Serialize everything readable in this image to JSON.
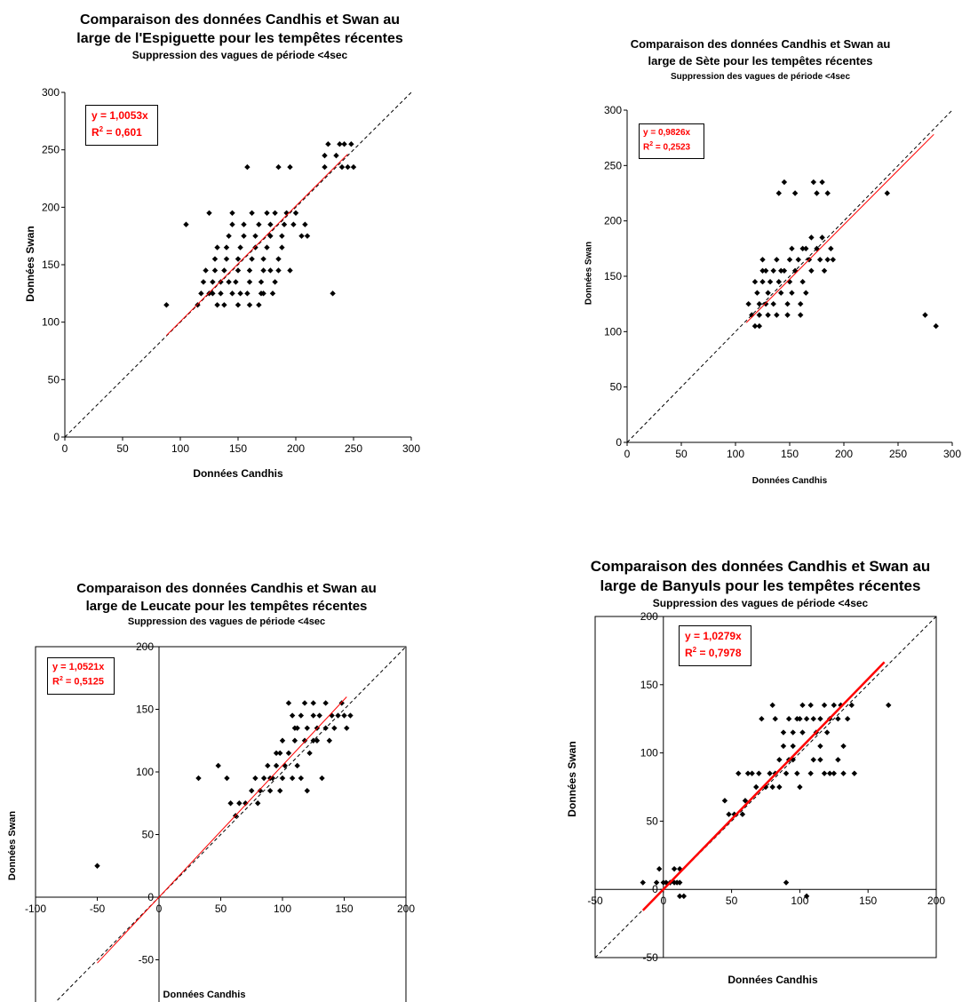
{
  "chart_data": [
    {
      "type": "scatter",
      "title_lines": [
        "Comparaison des données Candhis et Swan au",
        "large de l'Espiguette pour les tempêtes récentes"
      ],
      "subtitle": "Suppression des vagues de période <4sec",
      "xlabel": "Données Candhis",
      "ylabel": "Données Swan",
      "xlim": [
        0,
        300
      ],
      "ylim": [
        0,
        300
      ],
      "xticks": [
        0,
        50,
        100,
        150,
        200,
        250,
        300
      ],
      "yticks": [
        0,
        50,
        100,
        150,
        200,
        250,
        300
      ],
      "equation": "y = 1,0053x",
      "r2_label": "R",
      "r2_value": " = 0,601",
      "trend_slope": 1.0053,
      "trend_range": [
        88,
        245
      ],
      "points": [
        [
          88,
          115
        ],
        [
          105,
          185
        ],
        [
          115,
          115
        ],
        [
          118,
          125
        ],
        [
          120,
          135
        ],
        [
          122,
          145
        ],
        [
          125,
          195
        ],
        [
          125,
          125
        ],
        [
          128,
          135
        ],
        [
          130,
          145
        ],
        [
          130,
          155
        ],
        [
          132,
          165
        ],
        [
          132,
          115
        ],
        [
          135,
          125
        ],
        [
          135,
          135
        ],
        [
          138,
          145
        ],
        [
          140,
          155
        ],
        [
          140,
          165
        ],
        [
          142,
          175
        ],
        [
          145,
          195
        ],
        [
          145,
          185
        ],
        [
          145,
          125
        ],
        [
          148,
          135
        ],
        [
          150,
          145
        ],
        [
          150,
          155
        ],
        [
          150,
          115
        ],
        [
          152,
          165
        ],
        [
          155,
          175
        ],
        [
          155,
          185
        ],
        [
          158,
          125
        ],
        [
          158,
          235
        ],
        [
          160,
          135
        ],
        [
          160,
          145
        ],
        [
          162,
          155
        ],
        [
          162,
          195
        ],
        [
          165,
          165
        ],
        [
          165,
          175
        ],
        [
          168,
          185
        ],
        [
          168,
          115
        ],
        [
          170,
          125
        ],
        [
          170,
          135
        ],
        [
          172,
          145
        ],
        [
          172,
          155
        ],
        [
          175,
          165
        ],
        [
          175,
          195
        ],
        [
          178,
          175
        ],
        [
          178,
          185
        ],
        [
          180,
          125
        ],
        [
          182,
          135
        ],
        [
          182,
          195
        ],
        [
          185,
          145
        ],
        [
          185,
          155
        ],
        [
          185,
          235
        ],
        [
          188,
          165
        ],
        [
          188,
          175
        ],
        [
          190,
          185
        ],
        [
          192,
          195
        ],
        [
          195,
          235
        ],
        [
          195,
          145
        ],
        [
          198,
          185
        ],
        [
          200,
          195
        ],
        [
          205,
          175
        ],
        [
          208,
          185
        ],
        [
          210,
          175
        ],
        [
          225,
          235
        ],
        [
          225,
          245
        ],
        [
          228,
          255
        ],
        [
          232,
          125
        ],
        [
          235,
          245
        ],
        [
          238,
          255
        ],
        [
          240,
          235
        ],
        [
          242,
          255
        ],
        [
          245,
          235
        ],
        [
          248,
          255
        ],
        [
          250,
          235
        ],
        [
          128,
          125
        ],
        [
          138,
          115
        ],
        [
          142,
          135
        ],
        [
          152,
          125
        ],
        [
          160,
          115
        ],
        [
          172,
          125
        ],
        [
          178,
          145
        ]
      ]
    },
    {
      "type": "scatter",
      "title_lines": [
        "Comparaison des données Candhis et Swan au",
        "large de Sète pour les tempêtes récentes"
      ],
      "subtitle": "Suppression des vagues de période <4sec",
      "xlabel": "Données Candhis",
      "ylabel": "Données Swan",
      "xlim": [
        0,
        300
      ],
      "ylim": [
        0,
        300
      ],
      "xticks": [
        0,
        50,
        100,
        150,
        200,
        250,
        300
      ],
      "yticks": [
        0,
        50,
        100,
        150,
        200,
        250,
        300
      ],
      "equation": "y = 0,9826x",
      "r2_label": "R",
      "r2_value": " = 0,2523",
      "trend_slope": 0.9826,
      "trend_range": [
        110,
        283
      ],
      "points": [
        [
          112,
          125
        ],
        [
          115,
          115
        ],
        [
          118,
          105
        ],
        [
          120,
          135
        ],
        [
          122,
          125
        ],
        [
          122,
          115
        ],
        [
          122,
          105
        ],
        [
          125,
          145
        ],
        [
          125,
          155
        ],
        [
          125,
          165
        ],
        [
          128,
          125
        ],
        [
          130,
          135
        ],
        [
          130,
          115
        ],
        [
          132,
          145
        ],
        [
          135,
          155
        ],
        [
          135,
          125
        ],
        [
          138,
          165
        ],
        [
          138,
          115
        ],
        [
          140,
          225
        ],
        [
          140,
          145
        ],
        [
          142,
          135
        ],
        [
          145,
          155
        ],
        [
          145,
          235
        ],
        [
          148,
          125
        ],
        [
          148,
          115
        ],
        [
          150,
          165
        ],
        [
          150,
          145
        ],
        [
          152,
          135
        ],
        [
          155,
          225
        ],
        [
          155,
          155
        ],
        [
          158,
          165
        ],
        [
          160,
          125
        ],
        [
          160,
          115
        ],
        [
          162,
          145
        ],
        [
          165,
          175
        ],
        [
          165,
          135
        ],
        [
          168,
          165
        ],
        [
          170,
          155
        ],
        [
          170,
          185
        ],
        [
          172,
          235
        ],
        [
          175,
          225
        ],
        [
          175,
          175
        ],
        [
          178,
          165
        ],
        [
          180,
          185
        ],
        [
          180,
          235
        ],
        [
          182,
          155
        ],
        [
          185,
          225
        ],
        [
          185,
          165
        ],
        [
          188,
          175
        ],
        [
          190,
          165
        ],
        [
          240,
          225
        ],
        [
          275,
          115
        ],
        [
          285,
          105
        ],
        [
          118,
          145
        ],
        [
          128,
          155
        ],
        [
          142,
          155
        ],
        [
          152,
          175
        ],
        [
          162,
          175
        ]
      ]
    },
    {
      "type": "scatter",
      "title_lines": [
        "Comparaison des données Candhis et Swan au",
        "large de Leucate pour les tempêtes récentes"
      ],
      "subtitle": "Suppression des vagues de période <4sec",
      "xlabel": "Données Candhis",
      "ylabel": "Données Swan",
      "xlim": [
        -100,
        200
      ],
      "ylim": [
        -100,
        200
      ],
      "xticks": [
        -100,
        -50,
        0,
        50,
        100,
        150,
        200
      ],
      "yticks": [
        -100,
        -50,
        0,
        50,
        100,
        150,
        200
      ],
      "equation": "y = 1,0521x",
      "r2_label": "R",
      "r2_value": " = 0,5125",
      "trend_slope": 1.0521,
      "trend_range": [
        -50,
        152
      ],
      "points": [
        [
          -50,
          25
        ],
        [
          32,
          95
        ],
        [
          48,
          105
        ],
        [
          55,
          95
        ],
        [
          58,
          75
        ],
        [
          62,
          65
        ],
        [
          65,
          75
        ],
        [
          70,
          75
        ],
        [
          75,
          85
        ],
        [
          78,
          95
        ],
        [
          80,
          75
        ],
        [
          82,
          85
        ],
        [
          85,
          95
        ],
        [
          88,
          105
        ],
        [
          90,
          85
        ],
        [
          92,
          95
        ],
        [
          95,
          105
        ],
        [
          95,
          115
        ],
        [
          98,
          85
        ],
        [
          100,
          95
        ],
        [
          100,
          125
        ],
        [
          102,
          105
        ],
        [
          105,
          115
        ],
        [
          105,
          155
        ],
        [
          108,
          95
        ],
        [
          108,
          145
        ],
        [
          110,
          125
        ],
        [
          112,
          105
        ],
        [
          112,
          135
        ],
        [
          115,
          145
        ],
        [
          115,
          95
        ],
        [
          118,
          125
        ],
        [
          118,
          155
        ],
        [
          120,
          135
        ],
        [
          120,
          85
        ],
        [
          122,
          115
        ],
        [
          125,
          145
        ],
        [
          125,
          155
        ],
        [
          128,
          125
        ],
        [
          128,
          135
        ],
        [
          130,
          145
        ],
        [
          132,
          95
        ],
        [
          135,
          135
        ],
        [
          135,
          155
        ],
        [
          138,
          125
        ],
        [
          140,
          145
        ],
        [
          142,
          135
        ],
        [
          145,
          145
        ],
        [
          148,
          155
        ],
        [
          150,
          145
        ],
        [
          152,
          135
        ],
        [
          155,
          145
        ],
        [
          125,
          125
        ],
        [
          110,
          135
        ],
        [
          98,
          115
        ],
        [
          90,
          95
        ]
      ]
    },
    {
      "type": "scatter",
      "title_lines": [
        "Comparaison des données Candhis et Swan au",
        "large de Banyuls pour les tempêtes récentes"
      ],
      "subtitle": "Suppression des vagues de période <4sec",
      "xlabel": "Données Candhis",
      "ylabel": "Données Swan",
      "xlim": [
        -50,
        200
      ],
      "ylim": [
        -50,
        200
      ],
      "xticks": [
        -50,
        0,
        50,
        100,
        150,
        200
      ],
      "yticks": [
        -50,
        0,
        50,
        100,
        150,
        200
      ],
      "equation": "y = 1,0279x",
      "r2_label": "R",
      "r2_value": " = 0,7978",
      "trend_slope": 1.0279,
      "trend_range": [
        -15,
        162
      ],
      "points": [
        [
          -15,
          5
        ],
        [
          -5,
          5
        ],
        [
          -3,
          15
        ],
        [
          0,
          5
        ],
        [
          2,
          5
        ],
        [
          5,
          5
        ],
        [
          8,
          5
        ],
        [
          10,
          5
        ],
        [
          12,
          5
        ],
        [
          12,
          -5
        ],
        [
          15,
          -5
        ],
        [
          8,
          15
        ],
        [
          12,
          15
        ],
        [
          45,
          65
        ],
        [
          48,
          55
        ],
        [
          52,
          55
        ],
        [
          55,
          85
        ],
        [
          58,
          55
        ],
        [
          60,
          65
        ],
        [
          62,
          85
        ],
        [
          65,
          85
        ],
        [
          68,
          75
        ],
        [
          70,
          85
        ],
        [
          72,
          125
        ],
        [
          75,
          75
        ],
        [
          78,
          85
        ],
        [
          80,
          135
        ],
        [
          80,
          75
        ],
        [
          82,
          125
        ],
        [
          82,
          85
        ],
        [
          85,
          95
        ],
        [
          85,
          75
        ],
        [
          88,
          105
        ],
        [
          88,
          115
        ],
        [
          90,
          5
        ],
        [
          90,
          85
        ],
        [
          92,
          125
        ],
        [
          92,
          95
        ],
        [
          95,
          105
        ],
        [
          95,
          115
        ],
        [
          98,
          125
        ],
        [
          98,
          85
        ],
        [
          100,
          75
        ],
        [
          102,
          135
        ],
        [
          102,
          115
        ],
        [
          105,
          125
        ],
        [
          105,
          -5
        ],
        [
          108,
          85
        ],
        [
          108,
          135
        ],
        [
          110,
          95
        ],
        [
          110,
          125
        ],
        [
          112,
          115
        ],
        [
          115,
          105
        ],
        [
          115,
          125
        ],
        [
          118,
          135
        ],
        [
          118,
          85
        ],
        [
          120,
          115
        ],
        [
          122,
          125
        ],
        [
          125,
          135
        ],
        [
          125,
          85
        ],
        [
          128,
          95
        ],
        [
          128,
          125
        ],
        [
          130,
          135
        ],
        [
          132,
          105
        ],
        [
          135,
          125
        ],
        [
          138,
          135
        ],
        [
          140,
          85
        ],
        [
          165,
          135
        ],
        [
          100,
          125
        ],
        [
          95,
          95
        ],
        [
          115,
          95
        ],
        [
          122,
          85
        ],
        [
          132,
          85
        ]
      ]
    }
  ]
}
